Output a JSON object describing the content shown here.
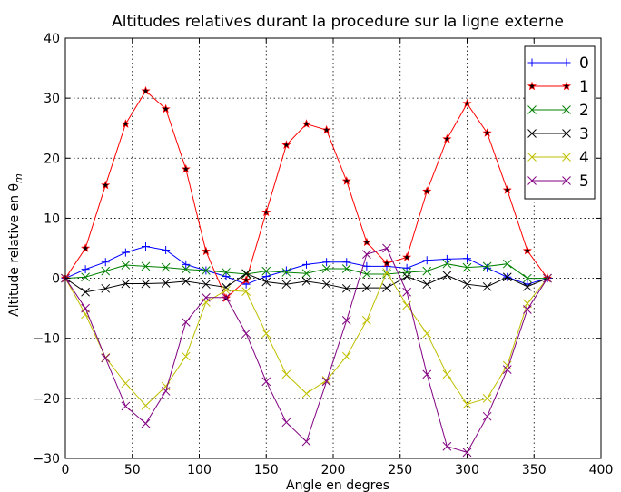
{
  "chart_data": {
    "type": "line",
    "title": "Altitudes relatives durant la procedure sur la ligne externe",
    "xlabel": "Angle en degres",
    "ylabel": "Altitude relative en θ",
    "ylabel_subscript": "m",
    "xlim": [
      0,
      400
    ],
    "ylim": [
      -30,
      40
    ],
    "xticks": [
      0,
      50,
      100,
      150,
      200,
      250,
      300,
      350,
      400
    ],
    "yticks": [
      -30,
      -20,
      -10,
      0,
      10,
      20,
      30,
      40
    ],
    "xtick_labels": [
      "0",
      "50",
      "100",
      "150",
      "200",
      "250",
      "300",
      "350",
      "400"
    ],
    "ytick_labels": [
      "−30",
      "−20",
      "−10",
      "0",
      "10",
      "20",
      "30",
      "40"
    ],
    "grid": true,
    "legend_position": "top-right",
    "x": [
      0,
      15,
      30,
      45,
      60,
      75,
      90,
      105,
      120,
      135,
      150,
      165,
      180,
      195,
      210,
      225,
      240,
      255,
      270,
      285,
      300,
      315,
      330,
      345,
      360
    ],
    "series": [
      {
        "name": "0",
        "color": "#0000ff",
        "marker": "plus",
        "values": [
          0,
          1.5,
          2.7,
          4.3,
          5.3,
          4.7,
          2.3,
          1.3,
          0.3,
          -1.0,
          0.3,
          1.3,
          2.3,
          2.7,
          2.7,
          2.0,
          2.0,
          1.7,
          3.0,
          3.2,
          3.3,
          1.7,
          0.2,
          -1.0,
          0
        ]
      },
      {
        "name": "1",
        "color": "#ff0000",
        "marker": "star",
        "values": [
          0,
          5.0,
          15.5,
          25.7,
          31.2,
          28.2,
          18.2,
          4.5,
          -3.3,
          -0.3,
          11.0,
          22.2,
          25.7,
          24.7,
          16.2,
          6.0,
          2.5,
          3.5,
          14.5,
          23.2,
          29.1,
          24.2,
          14.7,
          4.6,
          0
        ]
      },
      {
        "name": "2",
        "color": "#008000",
        "marker": "x",
        "values": [
          0,
          0.2,
          1.2,
          2.2,
          2.0,
          1.8,
          1.5,
          1.3,
          1.0,
          0.7,
          1.2,
          1.0,
          0.8,
          1.6,
          1.6,
          0.7,
          0.7,
          1.0,
          1.2,
          2.4,
          1.8,
          2.0,
          2.4,
          0,
          0
        ]
      },
      {
        "name": "3",
        "color": "#000000",
        "marker": "x",
        "values": [
          0,
          -2.3,
          -1.7,
          -0.9,
          -0.9,
          -0.8,
          -0.5,
          -1.0,
          -1.5,
          0.8,
          -0.6,
          -1.0,
          -0.5,
          -1.0,
          -1.7,
          -1.6,
          -1.6,
          0.3,
          -1.0,
          0.5,
          -1.0,
          -1.4,
          0.2,
          -1.4,
          0
        ]
      },
      {
        "name": "4",
        "color": "#bfbf00",
        "marker": "x",
        "values": [
          0,
          -6.0,
          -13.2,
          -17.5,
          -21.2,
          -18.0,
          -13.0,
          -4.0,
          -2.0,
          -2.2,
          -9.2,
          -16.0,
          -19.2,
          -17.0,
          -13.0,
          -7.0,
          1.0,
          -4.5,
          -9.2,
          -16.0,
          -21.0,
          -20.0,
          -14.5,
          -4.2,
          0
        ]
      },
      {
        "name": "5",
        "color": "#800080",
        "marker": "x",
        "values": [
          0,
          -5.0,
          -13.3,
          -21.3,
          -24.2,
          -18.8,
          -7.3,
          -3.2,
          -3.2,
          -9.2,
          -17.2,
          -24.0,
          -27.2,
          -17.2,
          -7.0,
          4.0,
          5.0,
          -2.3,
          -16.0,
          -28.0,
          -29.0,
          -23.0,
          -15.2,
          -5.2,
          0
        ]
      }
    ]
  }
}
